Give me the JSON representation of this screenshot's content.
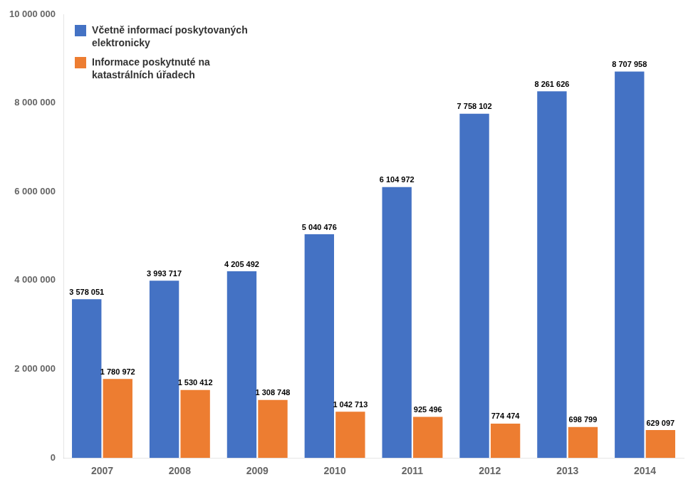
{
  "chart_data": {
    "type": "bar",
    "categories": [
      "2007",
      "2008",
      "2009",
      "2010",
      "2011",
      "2012",
      "2013",
      "2014"
    ],
    "series": [
      {
        "name": "Včetně informací poskytovaných\nelektronicky",
        "color": "#4472C4",
        "values": [
          3578051,
          3993717,
          4205492,
          5040476,
          6104972,
          7758102,
          8261626,
          8707958
        ],
        "value_labels": [
          "3 578 051",
          "3 993 717",
          "4 205 492",
          "5 040 476",
          "6 104 972",
          "7 758 102",
          "8 261 626",
          "8 707 958"
        ]
      },
      {
        "name": "Informace poskytnuté na\nkatastrálních úřadech",
        "color": "#ED7D31",
        "values": [
          1780972,
          1530412,
          1308748,
          1042713,
          925496,
          774474,
          698799,
          629097
        ],
        "value_labels": [
          "1 780 972",
          "1 530 412",
          "1 308 748",
          "1 042 713",
          "925 496",
          "774 474",
          "698 799",
          "629 097"
        ]
      }
    ],
    "ylim": [
      0,
      10000000
    ],
    "yticks": [
      0,
      {
        "value": 2000000,
        "label": "2 000 000"
      },
      {
        "value": 4000000,
        "label": "4 000 000"
      },
      {
        "value": 6000000,
        "label": "6 000 000"
      },
      {
        "value": 8000000,
        "label": "8 000 000"
      },
      {
        "value": 10000000,
        "label": "10 000 000"
      }
    ],
    "grid": false,
    "legend": "upper left",
    "data_labels": true
  }
}
